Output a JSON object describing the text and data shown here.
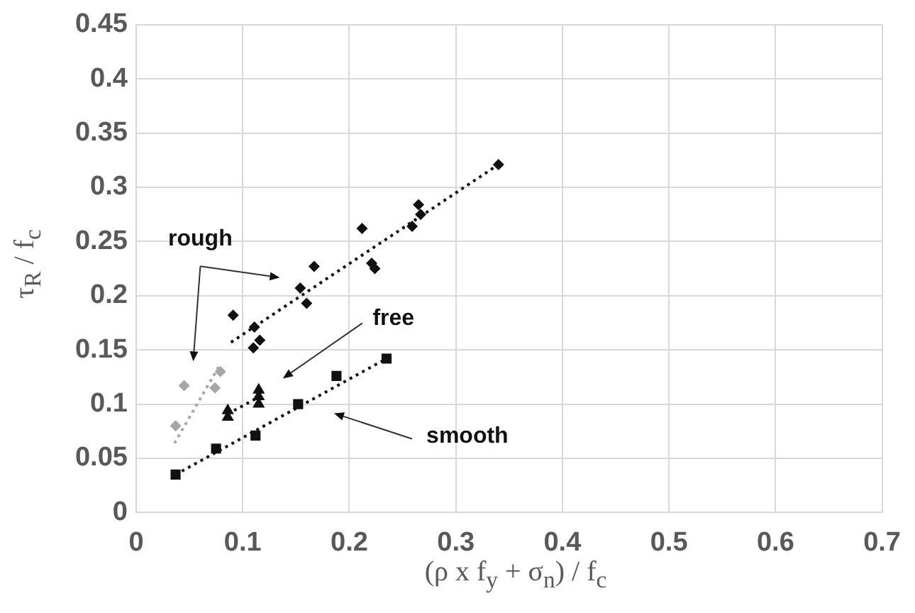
{
  "chart_data": {
    "type": "scatter",
    "xlabel": "(ρ x f$_{y}$ + σ$_{n}$) / f$_{c}$",
    "ylabel": "τ$_{R}$ / f$_{c}$",
    "xlim": [
      0,
      0.7
    ],
    "xticks": [
      0,
      0.1,
      0.2,
      0.3,
      0.4,
      0.5,
      0.6,
      {
        "value": 0.7,
        "label": "0.7"
      }
    ],
    "ylim": [
      0,
      0.45
    ],
    "yticks": [
      0,
      0.05,
      0.1,
      0.15,
      0.2,
      0.25,
      0.3,
      0.35,
      0.4,
      0.45
    ],
    "grid": true,
    "legend": false,
    "series": [
      {
        "type": "scatter",
        "marker": "diamond",
        "color": "#111111",
        "x": [
          0.091,
          0.111,
          0.11,
          0.116,
          0.154,
          0.16,
          0.167,
          0.212,
          0.221,
          0.224,
          0.259,
          0.265,
          0.267,
          0.34
        ],
        "values": [
          0.182,
          0.171,
          0.152,
          0.159,
          0.207,
          0.193,
          0.227,
          0.262,
          0.23,
          0.225,
          0.264,
          0.284,
          0.275,
          0.321
        ]
      },
      {
        "type": "scatter",
        "marker": "diamond",
        "color": "#a6a6a6",
        "x": [
          0.037,
          0.045,
          0.074,
          0.079
        ],
        "values": [
          0.08,
          0.117,
          0.115,
          0.13
        ]
      },
      {
        "type": "scatter",
        "marker": "triangle",
        "color": "#111111",
        "x": [
          0.086,
          0.086,
          0.115,
          0.115,
          0.115
        ],
        "values": [
          0.094,
          0.088,
          0.113,
          0.107,
          0.1
        ]
      },
      {
        "type": "scatter",
        "marker": "square",
        "color": "#111111",
        "x": [
          0.037,
          0.075,
          0.112,
          0.152,
          0.188,
          0.235
        ],
        "values": [
          0.035,
          0.059,
          0.071,
          0.1,
          0.126,
          0.142
        ]
      },
      {
        "type": "line",
        "marker": "none",
        "line_style": "dotted",
        "color": "#111111",
        "x": [
          0.089,
          0.34
        ],
        "values": [
          0.157,
          0.321
        ]
      },
      {
        "type": "line",
        "marker": "none",
        "line_style": "dotted",
        "color": "#a6a6a6",
        "x": [
          0.036,
          0.079
        ],
        "values": [
          0.064,
          0.137
        ]
      },
      {
        "type": "line",
        "marker": "none",
        "line_style": "dotted",
        "color": "#111111",
        "x": [
          0.086,
          0.116
        ],
        "values": [
          0.091,
          0.107
        ]
      },
      {
        "type": "line",
        "marker": "none",
        "line_style": "dotted",
        "color": "#111111",
        "x": [
          0.037,
          0.235
        ],
        "values": [
          0.035,
          0.142
        ]
      }
    ],
    "annotations": [
      "rough",
      "free",
      "smooth"
    ]
  }
}
